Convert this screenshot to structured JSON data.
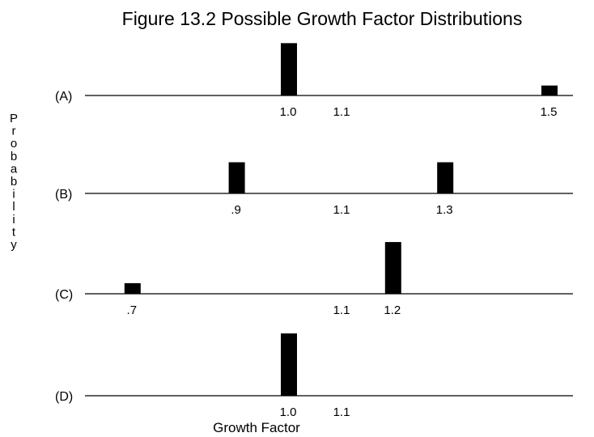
{
  "chart_data": {
    "title": "Figure 13.2 Possible Growth Factor Distributions",
    "type": "bar",
    "xlabel": "Growth Factor",
    "ylabel": "Probability",
    "grid": false,
    "x_reference_label": "1.1",
    "panels": [
      {
        "label": "(A)",
        "bars": [
          {
            "x": 1.0,
            "label": "1.0",
            "p": 0.84
          },
          {
            "x": 1.5,
            "label": "1.5",
            "p": 0.16
          }
        ]
      },
      {
        "label": "(B)",
        "bars": [
          {
            "x": 0.9,
            "label": ".9",
            "p": 0.5
          },
          {
            "x": 1.3,
            "label": "1.3",
            "p": 0.5
          }
        ]
      },
      {
        "label": "(C)",
        "bars": [
          {
            "x": 0.7,
            "label": ".7",
            "p": 0.17
          },
          {
            "x": 1.2,
            "label": "1.2",
            "p": 0.83
          }
        ]
      },
      {
        "label": "(D)",
        "bars": [
          {
            "x": 1.0,
            "label": "1.0",
            "p": 1.0
          }
        ]
      }
    ]
  }
}
